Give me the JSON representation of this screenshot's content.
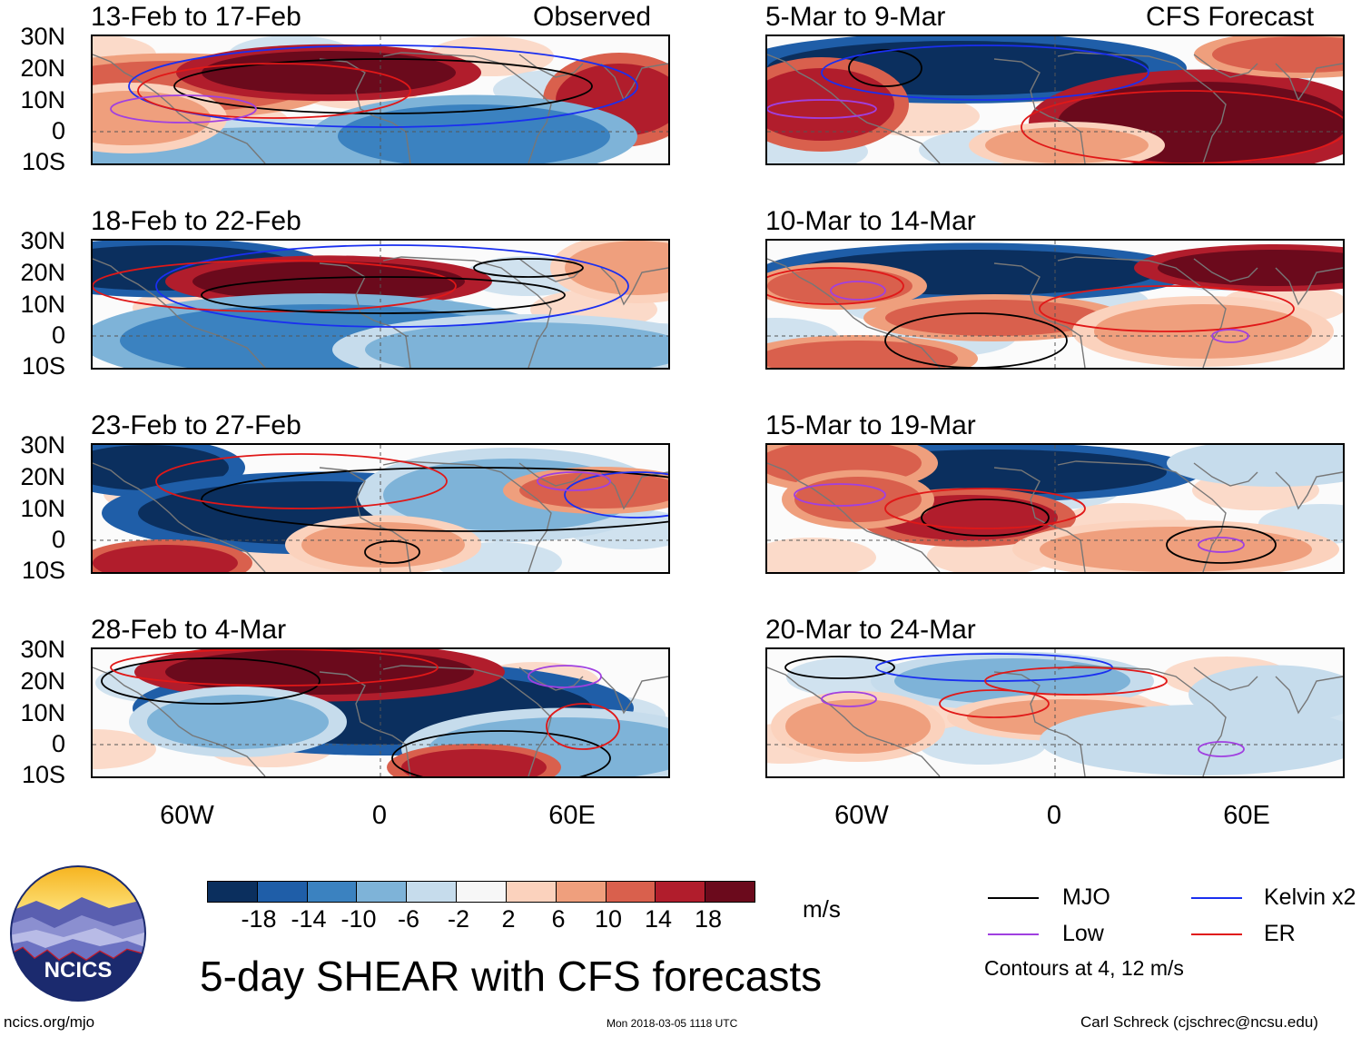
{
  "left_header": "Observed",
  "right_header": "CFS Forecast",
  "left_panels": [
    {
      "title": "13-Feb to 17-Feb"
    },
    {
      "title": "18-Feb to 22-Feb"
    },
    {
      "title": "23-Feb to 27-Feb"
    },
    {
      "title": "28-Feb to 4-Mar"
    }
  ],
  "right_panels": [
    {
      "title": "5-Mar to 9-Mar"
    },
    {
      "title": "10-Mar to 14-Mar"
    },
    {
      "title": "15-Mar to 19-Mar"
    },
    {
      "title": "20-Mar to 24-Mar"
    }
  ],
  "lat_labels": [
    "30N",
    "20N",
    "10N",
    "0",
    "10S"
  ],
  "lon_labels": [
    "60W",
    "0",
    "60E"
  ],
  "colorbar": {
    "ticks": [
      "-18",
      "-14",
      "-10",
      "-6",
      "-2",
      "2",
      "6",
      "10",
      "14",
      "18"
    ],
    "colors": [
      "#0b2f5e",
      "#1f5ea8",
      "#3b82c0",
      "#7eb3d8",
      "#c6dcec",
      "#f7f7f7",
      "#fbd2bd",
      "#ef9f7d",
      "#d9604d",
      "#b11d2c",
      "#6b0a1c"
    ],
    "units": "m/s"
  },
  "legend": {
    "items": [
      {
        "label": "MJO",
        "color": "#000000"
      },
      {
        "label": "Kelvin x2",
        "color": "#1a2ff0"
      },
      {
        "label": "Low",
        "color": "#a040e0"
      },
      {
        "label": "ER",
        "color": "#e01818"
      }
    ],
    "note": "Contours at 4, 12 m/s"
  },
  "logo_text": "NCICS",
  "main_title": "5-day SHEAR with CFS forecasts",
  "footer": {
    "left": "ncics.org/mjo",
    "center": "Mon 2018-03-05 1118 UTC",
    "right": "Carl Schreck (cjschrec@ncsu.edu)"
  }
}
